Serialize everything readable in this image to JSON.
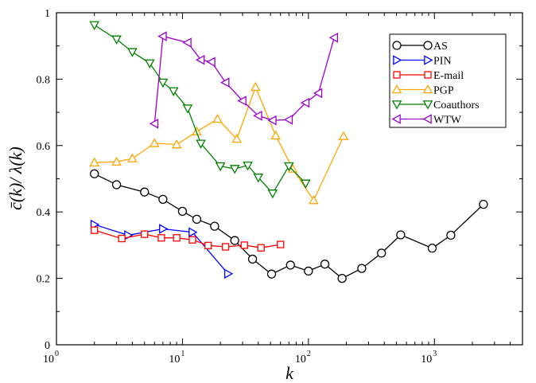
{
  "chart_data": {
    "type": "line",
    "x_scale": "log",
    "y_scale": "linear",
    "xlabel": "k",
    "ylabel": "c̄(k)/ λ(k)",
    "xlim": [
      1,
      5000
    ],
    "ylim": [
      0,
      1
    ],
    "x_ticks": [
      {
        "value": 1,
        "base": "10",
        "exp": "0"
      },
      {
        "value": 10,
        "base": "10",
        "exp": "1"
      },
      {
        "value": 100,
        "base": "10",
        "exp": "2"
      },
      {
        "value": 1000,
        "base": "10",
        "exp": "3"
      }
    ],
    "y_ticks": [
      {
        "value": 0,
        "label": "0"
      },
      {
        "value": 0.2,
        "label": "0.2"
      },
      {
        "value": 0.4,
        "label": "0.4"
      },
      {
        "value": 0.6,
        "label": "0.6"
      },
      {
        "value": 0.8,
        "label": "0.8"
      },
      {
        "value": 1,
        "label": "1"
      }
    ],
    "grid": false,
    "legend_position": "top-right",
    "series": [
      {
        "name": "AS",
        "color": "#000000",
        "marker": "circle",
        "x": [
          2,
          3,
          5,
          7,
          10,
          13,
          18,
          26,
          36,
          51,
          72,
          100,
          135,
          185,
          265,
          380,
          540,
          960,
          1350,
          2450
        ],
        "y": [
          0.515,
          0.482,
          0.46,
          0.438,
          0.402,
          0.378,
          0.357,
          0.314,
          0.258,
          0.213,
          0.24,
          0.222,
          0.243,
          0.2,
          0.23,
          0.276,
          0.331,
          0.291,
          0.33,
          0.423
        ]
      },
      {
        "name": "PIN",
        "color": "#0000ff",
        "marker": "triangle-right",
        "x": [
          2,
          3.7,
          7,
          12,
          23
        ],
        "y": [
          0.362,
          0.33,
          0.349,
          0.339,
          0.214
        ]
      },
      {
        "name": "E-mail",
        "color": "#ff0000",
        "marker": "square",
        "x": [
          2,
          3.3,
          5,
          6.8,
          9,
          12,
          16,
          22,
          31,
          42,
          60
        ],
        "y": [
          0.345,
          0.32,
          0.333,
          0.322,
          0.322,
          0.316,
          0.299,
          0.295,
          0.3,
          0.292,
          0.302
        ]
      },
      {
        "name": "PGP",
        "color": "#ffa500",
        "marker": "triangle-up",
        "x": [
          2,
          3,
          4,
          6,
          9,
          13,
          19,
          27,
          38,
          55,
          75,
          110,
          190
        ],
        "y": [
          0.549,
          0.551,
          0.561,
          0.607,
          0.603,
          0.642,
          0.68,
          0.62,
          0.776,
          0.63,
          0.53,
          0.435,
          0.628
        ]
      },
      {
        "name": "Coauthors",
        "color": "#008000",
        "marker": "triangle-down",
        "x": [
          2,
          3,
          4,
          5.5,
          7,
          8.5,
          11,
          14,
          20,
          26,
          33,
          40,
          52,
          70,
          95
        ],
        "y": [
          0.963,
          0.92,
          0.882,
          0.848,
          0.79,
          0.764,
          0.712,
          0.606,
          0.538,
          0.53,
          0.54,
          0.504,
          0.456,
          0.538,
          0.486
        ]
      },
      {
        "name": "WTW",
        "color": "#9900cc",
        "marker": "triangle-left",
        "x": [
          6,
          7,
          11,
          14,
          17,
          22,
          30,
          40,
          52,
          70,
          95,
          120,
          160
        ],
        "y": [
          0.666,
          0.929,
          0.91,
          0.858,
          0.852,
          0.79,
          0.735,
          0.69,
          0.676,
          0.678,
          0.729,
          0.758,
          0.925
        ]
      }
    ]
  }
}
